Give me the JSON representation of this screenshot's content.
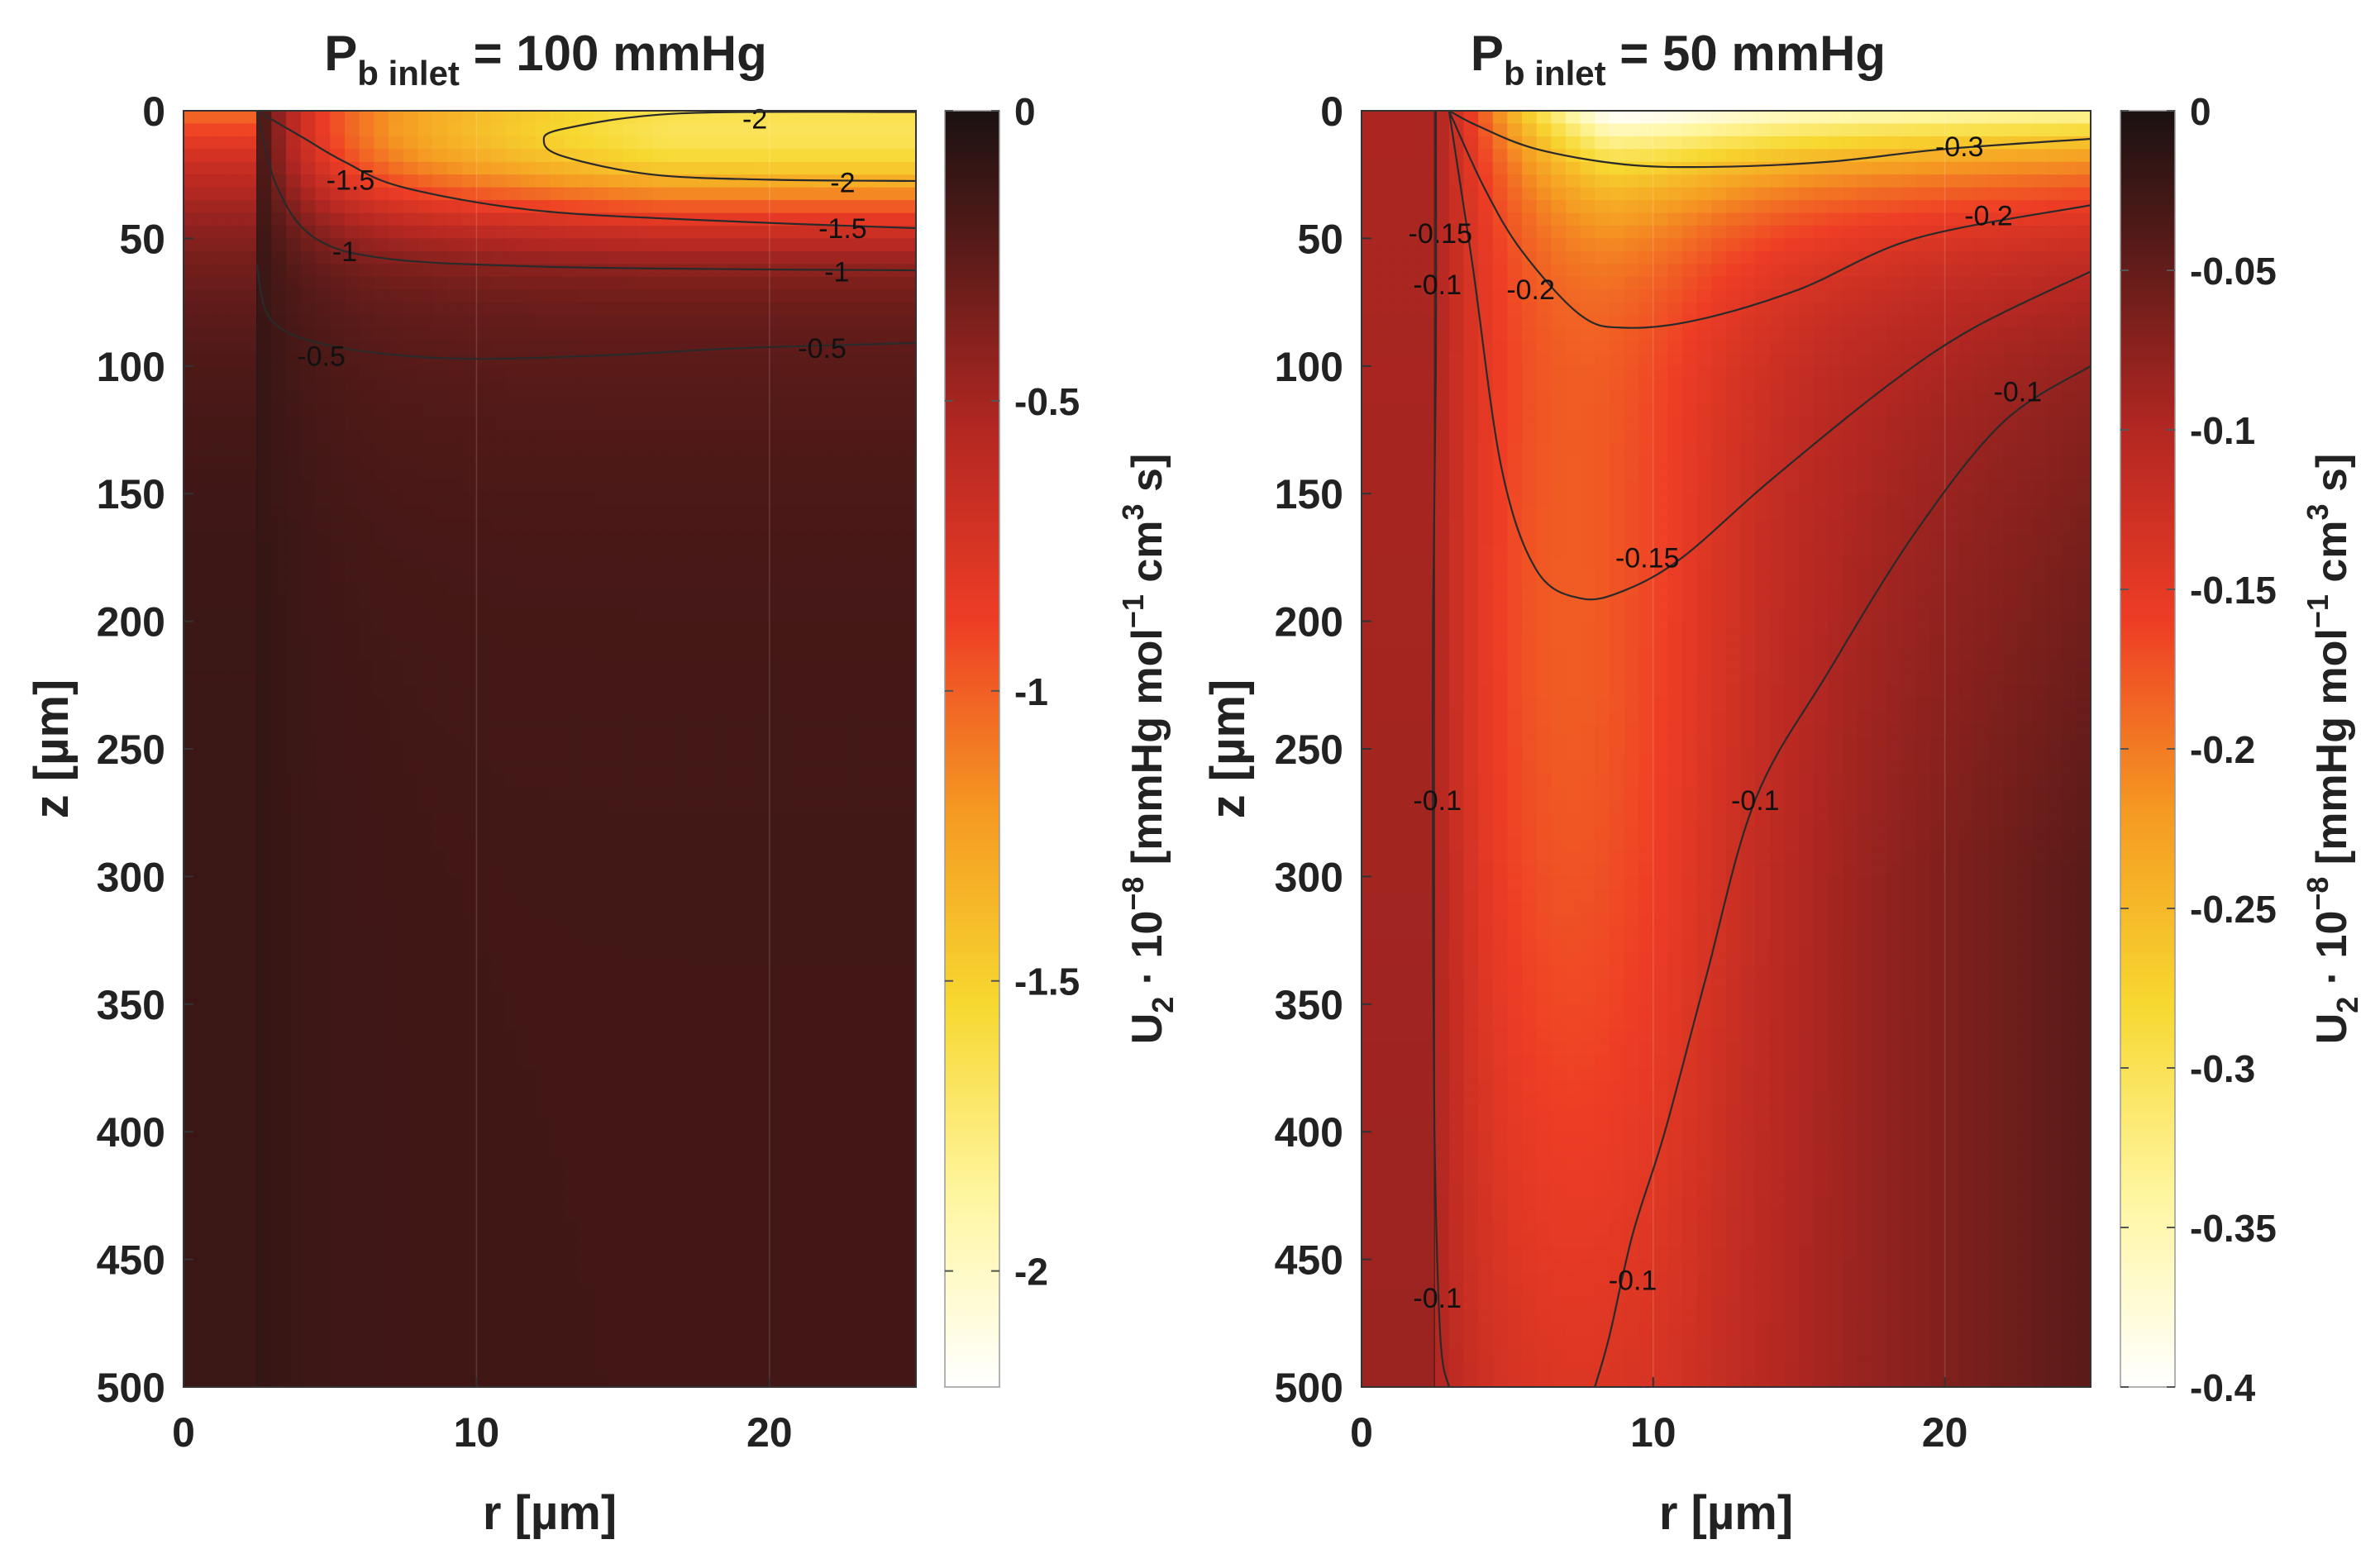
{
  "chart_data": [
    {
      "type": "heatmap",
      "title": {
        "main": "P",
        "subscript": "b inlet",
        "rest": " = 100 mmHg"
      },
      "xlabel": "r [µm]",
      "ylabel": "z [µm]",
      "xlim": [
        0,
        25
      ],
      "ylim": [
        0,
        500
      ],
      "y_reversed": true,
      "x_ticks": [
        "0",
        "10",
        "20"
      ],
      "y_ticks": [
        "0",
        "50",
        "100",
        "150",
        "200",
        "250",
        "300",
        "350",
        "400",
        "450",
        "500"
      ],
      "colorbar": {
        "min": -2.2,
        "max": 0,
        "ticks": [
          "0",
          "-0.5",
          "-1",
          "-1.5",
          "-2"
        ],
        "label": {
          "a": "U",
          "a_sub": "2",
          "b": " · 10",
          "b_sup": "−8",
          "c": " [mmHg mol",
          "c_sup": "−1",
          "d": " cm",
          "d_sup": "3",
          "e": " s]"
        }
      },
      "vessel_wall_r": 2.5,
      "contours": [
        {
          "level": -2,
          "points": [
            [
              25,
              0.5
            ],
            [
              17,
              1
            ],
            [
              13,
              7
            ],
            [
              12.3,
              12
            ],
            [
              13,
              18
            ],
            [
              16,
              25
            ],
            [
              20,
              27
            ],
            [
              25,
              27.5
            ]
          ],
          "labels": [
            {
              "text": "-2",
              "r": 19.5,
              "z": 3
            },
            {
              "text": "-2",
              "r": 22.5,
              "z": 28
            }
          ]
        },
        {
          "level": -1.5,
          "points": [
            [
              2.5,
              0
            ],
            [
              4,
              10
            ],
            [
              5.5,
              20
            ],
            [
              7.5,
              30
            ],
            [
              12,
              39
            ],
            [
              18,
              43
            ],
            [
              25,
              46
            ]
          ],
          "labels": [
            {
              "text": "-1.5",
              "r": 5.7,
              "z": 27
            },
            {
              "text": "-1.5",
              "r": 22.5,
              "z": 46
            }
          ]
        },
        {
          "level": -1,
          "points": [
            [
              2.5,
              0
            ],
            [
              3.2,
              30
            ],
            [
              4.5,
              50
            ],
            [
              7,
              58
            ],
            [
              12,
              61
            ],
            [
              18,
              62
            ],
            [
              25,
              62.5
            ]
          ],
          "labels": [
            {
              "text": "-1",
              "r": 5.5,
              "z": 55
            },
            {
              "text": "-1",
              "r": 22.3,
              "z": 63
            }
          ]
        },
        {
          "level": -0.5,
          "points": [
            [
              2.5,
              60
            ],
            [
              3,
              82
            ],
            [
              5,
              92
            ],
            [
              9,
              97
            ],
            [
              14,
              96
            ],
            [
              19,
              93
            ],
            [
              25,
              91
            ]
          ],
          "labels": [
            {
              "text": "-0.5",
              "r": 4.7,
              "z": 96
            },
            {
              "text": "-0.5",
              "r": 21.8,
              "z": 93
            }
          ]
        }
      ]
    },
    {
      "type": "heatmap",
      "title": {
        "main": "P",
        "subscript": "b inlet",
        "rest": " = 50 mmHg"
      },
      "xlabel": "r [µm]",
      "ylabel": "z [µm]",
      "xlim": [
        0,
        25
      ],
      "ylim": [
        0,
        500
      ],
      "y_reversed": true,
      "x_ticks": [
        "0",
        "10",
        "20"
      ],
      "y_ticks": [
        "0",
        "50",
        "100",
        "150",
        "200",
        "250",
        "300",
        "350",
        "400",
        "450",
        "500"
      ],
      "colorbar": {
        "min": -0.4,
        "max": 0,
        "ticks": [
          "0",
          "-0.05",
          "-0.1",
          "-0.15",
          "-0.2",
          "-0.25",
          "-0.3",
          "-0.35",
          "-0.4"
        ],
        "label": {
          "a": "U",
          "a_sub": "2",
          "b": " · 10",
          "b_sup": "−8",
          "c": " [mmHg mol",
          "c_sup": "−1",
          "d": " cm",
          "d_sup": "3",
          "e": " s]"
        }
      },
      "vessel_wall_r": 2.5,
      "contours": [
        {
          "level": -0.3,
          "points": [
            [
              3,
              0
            ],
            [
              4,
              6
            ],
            [
              6,
              15
            ],
            [
              9,
              21
            ],
            [
              12,
              22
            ],
            [
              16,
              20
            ],
            [
              20,
              15
            ],
            [
              25,
              11
            ]
          ],
          "labels": [
            {
              "text": "-0.3",
              "r": 20.5,
              "z": 14
            }
          ]
        },
        {
          "level": -0.2,
          "points": [
            [
              3,
              0
            ],
            [
              4.2,
              30
            ],
            [
              5.5,
              55
            ],
            [
              7.5,
              80
            ],
            [
              9,
              85
            ],
            [
              11.5,
              82
            ],
            [
              15,
              70
            ],
            [
              19,
              50
            ],
            [
              25,
              37
            ]
          ],
          "labels": [
            {
              "text": "-0.2",
              "r": 5.8,
              "z": 70
            },
            {
              "text": "-0.2",
              "r": 21.5,
              "z": 41
            }
          ]
        },
        {
          "level": -0.15,
          "points": [
            [
              3,
              0
            ],
            [
              3.8,
              60
            ],
            [
              4.8,
              140
            ],
            [
              6,
              180
            ],
            [
              7.5,
              191
            ],
            [
              9,
              188
            ],
            [
              11,
              175
            ],
            [
              14,
              145
            ],
            [
              18,
              108
            ],
            [
              21,
              85
            ],
            [
              25,
              63
            ]
          ],
          "labels": [
            {
              "text": "-0.15",
              "r": 2.7,
              "z": 48
            },
            {
              "text": "-0.15",
              "r": 9.8,
              "z": 175
            }
          ]
        },
        {
          "level": -0.1,
          "points": [
            [
              25,
              100
            ],
            [
              22,
              122
            ],
            [
              19,
              165
            ],
            [
              16,
              220
            ],
            [
              13.5,
              270
            ],
            [
              11.8,
              340
            ],
            [
              10.4,
              400
            ],
            [
              9.3,
              440
            ],
            [
              8.5,
              480
            ],
            [
              8,
              500
            ]
          ],
          "labels": [
            {
              "text": "-0.1",
              "r": 22.5,
              "z": 110
            },
            {
              "text": "-0.1",
              "r": 13.5,
              "z": 270
            },
            {
              "text": "-0.1",
              "r": 9.3,
              "z": 458
            }
          ]
        },
        {
          "level": -0.1,
          "points": [
            [
              2.55,
              0
            ],
            [
              2.55,
              100
            ],
            [
              2.45,
              200
            ],
            [
              2.45,
              300
            ],
            [
              2.5,
              400
            ],
            [
              2.7,
              480
            ],
            [
              3,
              500
            ]
          ],
          "labels": [
            {
              "text": "-0.1",
              "r": 2.6,
              "z": 68
            },
            {
              "text": "-0.1",
              "r": 2.6,
              "z": 270
            },
            {
              "text": "-0.1",
              "r": 2.6,
              "z": 465
            }
          ]
        }
      ]
    }
  ]
}
